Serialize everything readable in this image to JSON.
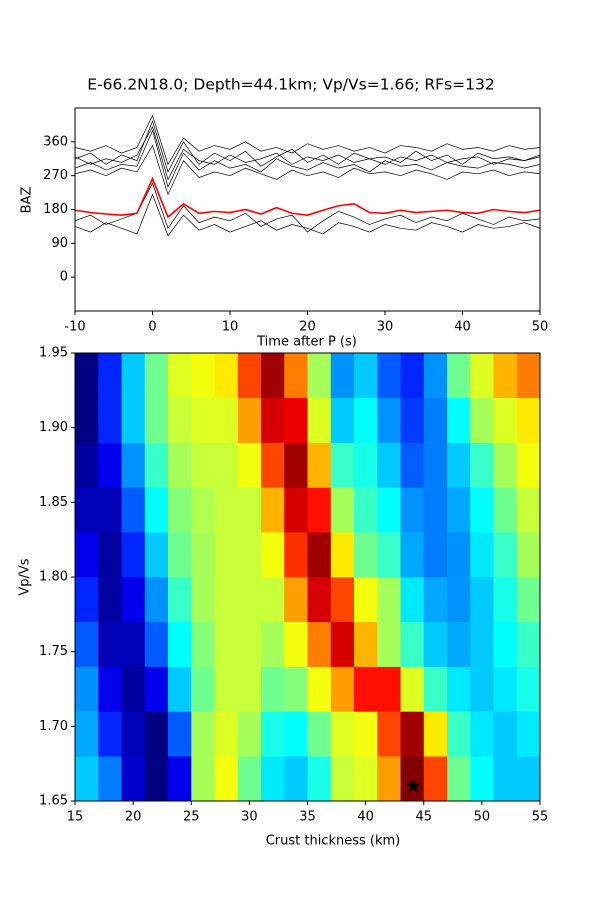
{
  "chart_data": [
    {
      "type": "line",
      "title": "E-66.2N18.0; Depth=44.1km; Vp/Vs=1.66; RFs=132",
      "xlabel": "Time after P (s)",
      "ylabel": "BAZ",
      "x": [
        -10,
        -8,
        -6,
        -4,
        -2,
        0,
        2,
        4,
        6,
        8,
        10,
        12,
        14,
        16,
        18,
        20,
        22,
        24,
        26,
        28,
        30,
        32,
        34,
        36,
        38,
        40,
        42,
        44,
        46,
        48,
        50
      ],
      "xlim": [
        -10,
        50
      ],
      "xticks": [
        -10,
        0,
        10,
        20,
        30,
        40,
        50
      ],
      "ylim": [
        -90,
        450
      ],
      "yticks": [
        0,
        90,
        180,
        270,
        360
      ],
      "series": [
        {
          "color": "#000000",
          "values": [
            315,
            330,
            300,
            325,
            310,
            415,
            280,
            360,
            300,
            330,
            310,
            335,
            295,
            320,
            340,
            305,
            325,
            300,
            330,
            315,
            320,
            305,
            335,
            310,
            325,
            300,
            330,
            315,
            320,
            310,
            325
          ]
        },
        {
          "color": "#000000",
          "values": [
            290,
            305,
            285,
            300,
            295,
            390,
            240,
            330,
            285,
            310,
            290,
            300,
            280,
            315,
            295,
            285,
            305,
            290,
            300,
            280,
            310,
            295,
            300,
            285,
            305,
            295,
            290,
            305,
            300,
            290,
            300
          ]
        },
        {
          "color": "#000000",
          "values": [
            345,
            335,
            350,
            330,
            345,
            430,
            300,
            370,
            335,
            350,
            340,
            360,
            335,
            345,
            330,
            355,
            340,
            350,
            335,
            345,
            330,
            350,
            345,
            335,
            355,
            340,
            345,
            335,
            350,
            340,
            345
          ]
        },
        {
          "color": "#000000",
          "values": [
            275,
            285,
            270,
            290,
            280,
            350,
            220,
            310,
            265,
            280,
            270,
            290,
            275,
            260,
            285,
            270,
            280,
            265,
            290,
            275,
            280,
            270,
            285,
            275,
            260,
            280,
            275,
            285,
            270,
            280,
            275
          ]
        },
        {
          "color": "#000000",
          "values": [
            320,
            300,
            315,
            305,
            325,
            400,
            260,
            340,
            310,
            300,
            325,
            305,
            315,
            330,
            300,
            320,
            310,
            325,
            305,
            315,
            300,
            320,
            310,
            325,
            305,
            315,
            320,
            300,
            315,
            310,
            320
          ]
        },
        {
          "color": "#000000",
          "values": [
            150,
            165,
            140,
            155,
            170,
            250,
            130,
            190,
            145,
            160,
            150,
            170,
            135,
            155,
            165,
            120,
            150,
            175,
            160,
            140,
            155,
            165,
            145,
            160,
            150,
            170,
            155,
            140,
            160,
            150,
            155
          ]
        },
        {
          "color": "#000000",
          "values": [
            135,
            120,
            145,
            130,
            115,
            220,
            110,
            165,
            125,
            140,
            120,
            135,
            150,
            125,
            140,
            130,
            115,
            145,
            135,
            120,
            140,
            130,
            125,
            145,
            135,
            120,
            140,
            130,
            135,
            145,
            130
          ]
        },
        {
          "color": "#ff0000",
          "values": [
            178,
            172,
            168,
            165,
            170,
            262,
            160,
            195,
            170,
            175,
            172,
            180,
            168,
            185,
            170,
            165,
            178,
            190,
            195,
            172,
            170,
            178,
            172,
            175,
            178,
            172,
            170,
            180,
            175,
            172,
            178
          ]
        }
      ]
    },
    {
      "type": "heatmap",
      "xlabel": "Crust thickness (km)",
      "ylabel": "Vp/Vs",
      "colormap": "jet",
      "x": [
        16,
        18,
        20,
        22,
        24,
        26,
        28,
        30,
        32,
        34,
        36,
        38,
        40,
        42,
        44,
        46,
        48,
        50,
        52,
        54
      ],
      "y": [
        1.665,
        1.695,
        1.725,
        1.755,
        1.785,
        1.815,
        1.845,
        1.875,
        1.905,
        1.935
      ],
      "z": [
        [
          0.35,
          0.28,
          0.12,
          0.05,
          0.15,
          0.55,
          0.62,
          0.5,
          0.38,
          0.35,
          0.42,
          0.58,
          0.6,
          0.72,
          0.98,
          0.8,
          0.5,
          0.4,
          0.35,
          0.35
        ],
        [
          0.32,
          0.2,
          0.1,
          0.05,
          0.25,
          0.55,
          0.6,
          0.55,
          0.42,
          0.4,
          0.5,
          0.6,
          0.62,
          0.8,
          0.95,
          0.65,
          0.45,
          0.38,
          0.35,
          0.38
        ],
        [
          0.3,
          0.15,
          0.08,
          0.15,
          0.35,
          0.5,
          0.58,
          0.58,
          0.5,
          0.52,
          0.62,
          0.72,
          0.85,
          0.85,
          0.6,
          0.45,
          0.38,
          0.35,
          0.38,
          0.42
        ],
        [
          0.25,
          0.1,
          0.1,
          0.25,
          0.4,
          0.52,
          0.58,
          0.58,
          0.55,
          0.62,
          0.75,
          0.9,
          0.7,
          0.55,
          0.45,
          0.35,
          0.32,
          0.35,
          0.4,
          0.45
        ],
        [
          0.2,
          0.08,
          0.15,
          0.3,
          0.45,
          0.55,
          0.58,
          0.58,
          0.58,
          0.72,
          0.9,
          0.8,
          0.62,
          0.55,
          0.38,
          0.32,
          0.3,
          0.35,
          0.42,
          0.5
        ],
        [
          0.15,
          0.08,
          0.2,
          0.35,
          0.5,
          0.55,
          0.58,
          0.58,
          0.62,
          0.82,
          0.95,
          0.65,
          0.5,
          0.45,
          0.32,
          0.28,
          0.3,
          0.38,
          0.45,
          0.55
        ],
        [
          0.1,
          0.1,
          0.25,
          0.4,
          0.52,
          0.56,
          0.58,
          0.58,
          0.7,
          0.9,
          0.85,
          0.55,
          0.45,
          0.4,
          0.3,
          0.28,
          0.32,
          0.4,
          0.5,
          0.58
        ],
        [
          0.08,
          0.15,
          0.3,
          0.45,
          0.55,
          0.58,
          0.58,
          0.62,
          0.8,
          0.95,
          0.7,
          0.45,
          0.42,
          0.35,
          0.25,
          0.28,
          0.35,
          0.45,
          0.55,
          0.62
        ],
        [
          0.05,
          0.2,
          0.35,
          0.5,
          0.58,
          0.6,
          0.6,
          0.72,
          0.9,
          0.88,
          0.6,
          0.35,
          0.4,
          0.3,
          0.22,
          0.28,
          0.4,
          0.55,
          0.6,
          0.65
        ],
        [
          0.05,
          0.2,
          0.35,
          0.5,
          0.6,
          0.62,
          0.65,
          0.8,
          0.95,
          0.75,
          0.55,
          0.3,
          0.35,
          0.25,
          0.2,
          0.3,
          0.5,
          0.6,
          0.7,
          0.75
        ]
      ],
      "xlim": [
        15,
        55
      ],
      "xticks": [
        15,
        20,
        25,
        30,
        35,
        40,
        45,
        50,
        55
      ],
      "ylim": [
        1.65,
        1.95
      ],
      "yticks": [
        1.65,
        {
          "value": 1.7,
          "label": "1.70"
        },
        1.75,
        {
          "value": 1.8,
          "label": "1.80"
        },
        1.85,
        {
          "value": 1.9,
          "label": "1.90"
        },
        1.95
      ],
      "marker": {
        "x": 44.1,
        "y": 1.66,
        "color": "#000000"
      }
    }
  ]
}
